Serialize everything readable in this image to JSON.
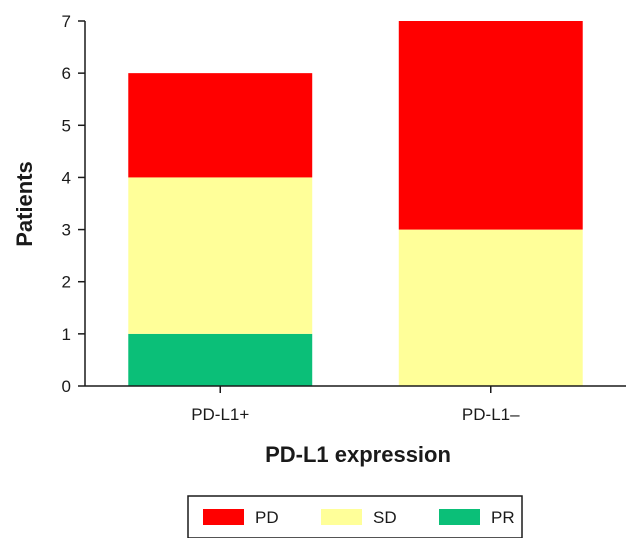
{
  "chart_data": {
    "type": "bar",
    "stacked": true,
    "categories": [
      "PD-L1+",
      "PD-L1–"
    ],
    "series": [
      {
        "name": "PR",
        "values": [
          1,
          0
        ],
        "color": "#0bbf78"
      },
      {
        "name": "SD",
        "values": [
          3,
          3
        ],
        "color": "#ffff99"
      },
      {
        "name": "PD",
        "values": [
          2,
          4
        ],
        "color": "#ff0000"
      }
    ],
    "xlabel": "PD-L1 expression",
    "ylabel": "Patients",
    "ylim": [
      0,
      7
    ],
    "yticks": [
      0,
      1,
      2,
      3,
      4,
      5,
      6,
      7
    ],
    "grid": false,
    "legend": {
      "placement": "bottom-center",
      "order": [
        "PD",
        "SD",
        "PR"
      ]
    }
  }
}
